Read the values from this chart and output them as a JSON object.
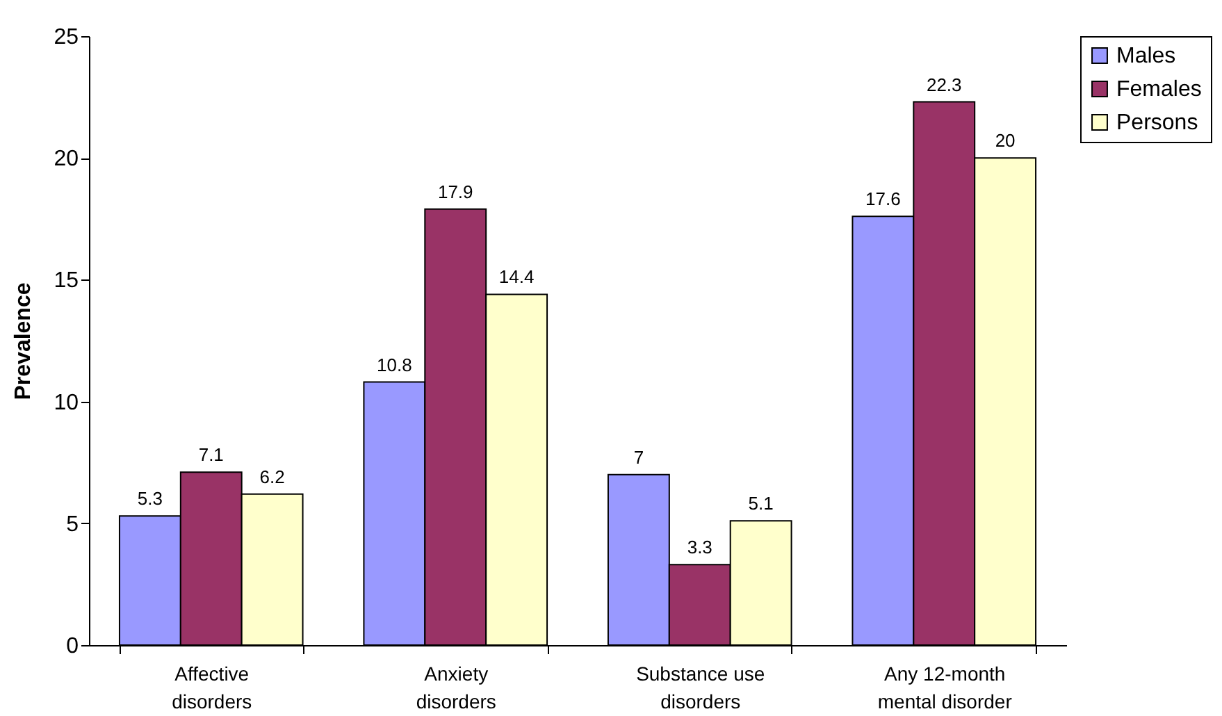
{
  "chart_data": {
    "type": "bar",
    "ylabel": "Prevalence",
    "categories": [
      "Affective disorders",
      "Anxiety disorders",
      "Substance use disorders",
      "Any 12-month mental disorder"
    ],
    "series": [
      {
        "name": "Males",
        "color": "#9999ff",
        "values": [
          5.3,
          10.8,
          7,
          17.6
        ]
      },
      {
        "name": "Females",
        "color": "#993366",
        "values": [
          7.1,
          17.9,
          3.3,
          22.3
        ]
      },
      {
        "name": "Persons",
        "color": "#ffffcc",
        "values": [
          6.2,
          14.4,
          5.1,
          20
        ]
      }
    ],
    "ylim": [
      0,
      25
    ],
    "yticks": [
      0,
      5,
      10,
      15,
      20,
      25
    ],
    "grid": false,
    "legend": "right",
    "data_labels": true
  }
}
